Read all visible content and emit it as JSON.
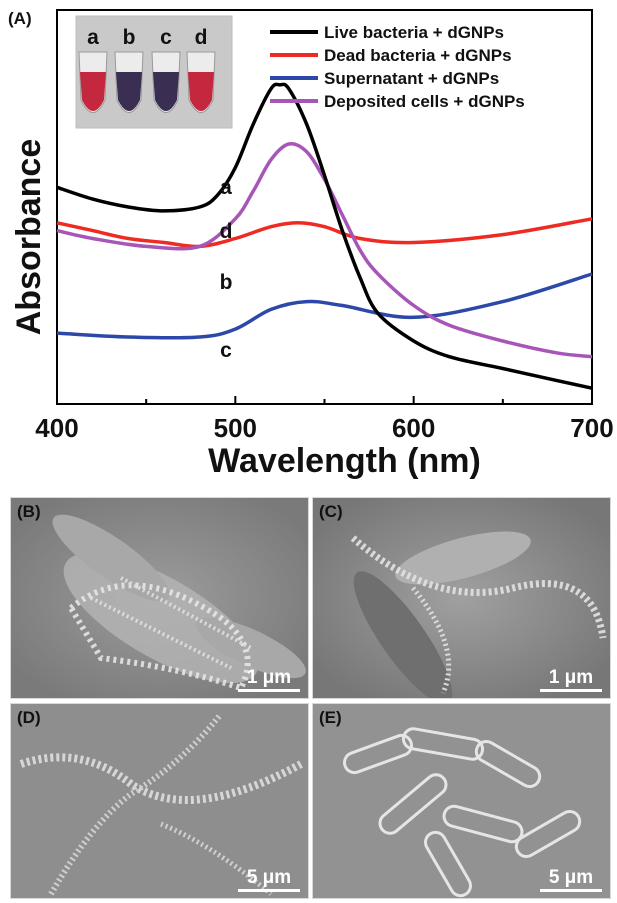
{
  "panel_a_label": "(A)",
  "chart_data": {
    "type": "line",
    "xlabel": "Wavelength (nm)",
    "ylabel": "Absorbance",
    "xlim": [
      400,
      700
    ],
    "ylim": [
      0,
      1
    ],
    "xticks": [
      400,
      500,
      600,
      700
    ],
    "legend_position": "top-right",
    "series": [
      {
        "name": "Live bacteria + dGNPs",
        "tag": "a",
        "color": "#000000",
        "x": [
          400,
          420,
          440,
          460,
          480,
          490,
          500,
          510,
          520,
          525,
          530,
          540,
          550,
          560,
          570,
          580,
          600,
          620,
          650,
          680,
          700
        ],
        "y": [
          0.55,
          0.52,
          0.5,
          0.49,
          0.5,
          0.53,
          0.6,
          0.71,
          0.8,
          0.81,
          0.8,
          0.71,
          0.58,
          0.44,
          0.32,
          0.23,
          0.16,
          0.12,
          0.09,
          0.06,
          0.04
        ]
      },
      {
        "name": "Dead bacteria + dGNPs",
        "tag": "b",
        "color": "#ee2b23",
        "x": [
          400,
          420,
          440,
          460,
          480,
          500,
          520,
          535,
          550,
          570,
          600,
          650,
          700
        ],
        "y": [
          0.46,
          0.44,
          0.42,
          0.41,
          0.4,
          0.42,
          0.45,
          0.46,
          0.45,
          0.42,
          0.41,
          0.43,
          0.47
        ]
      },
      {
        "name": "Supernatant + dGNPs",
        "tag": "c",
        "color": "#2c48a8",
        "x": [
          400,
          440,
          480,
          500,
          520,
          540,
          560,
          600,
          650,
          700
        ],
        "y": [
          0.18,
          0.17,
          0.17,
          0.19,
          0.24,
          0.26,
          0.25,
          0.22,
          0.26,
          0.33
        ]
      },
      {
        "name": "Deposited cells + dGNPs",
        "tag": "d",
        "color": "#a855b8",
        "x": [
          400,
          420,
          450,
          480,
          500,
          510,
          520,
          530,
          540,
          550,
          560,
          570,
          580,
          600,
          620,
          650,
          680,
          700
        ],
        "y": [
          0.44,
          0.42,
          0.4,
          0.4,
          0.47,
          0.54,
          0.62,
          0.66,
          0.64,
          0.57,
          0.48,
          0.39,
          0.33,
          0.25,
          0.2,
          0.16,
          0.13,
          0.12
        ]
      }
    ],
    "curve_labels": [
      "a",
      "b",
      "c",
      "d"
    ],
    "inset": {
      "tube_labels": [
        "a",
        "b",
        "c",
        "d"
      ],
      "tube_colors": [
        "#c4283e",
        "#3a2f52",
        "#3a2f52",
        "#c4283e"
      ]
    }
  },
  "sem_panels": [
    {
      "label": "(B)",
      "scale": "1 μm"
    },
    {
      "label": "(C)",
      "scale": "1 μm"
    },
    {
      "label": "(D)",
      "scale": "5 μm"
    },
    {
      "label": "(E)",
      "scale": "5 μm"
    }
  ]
}
